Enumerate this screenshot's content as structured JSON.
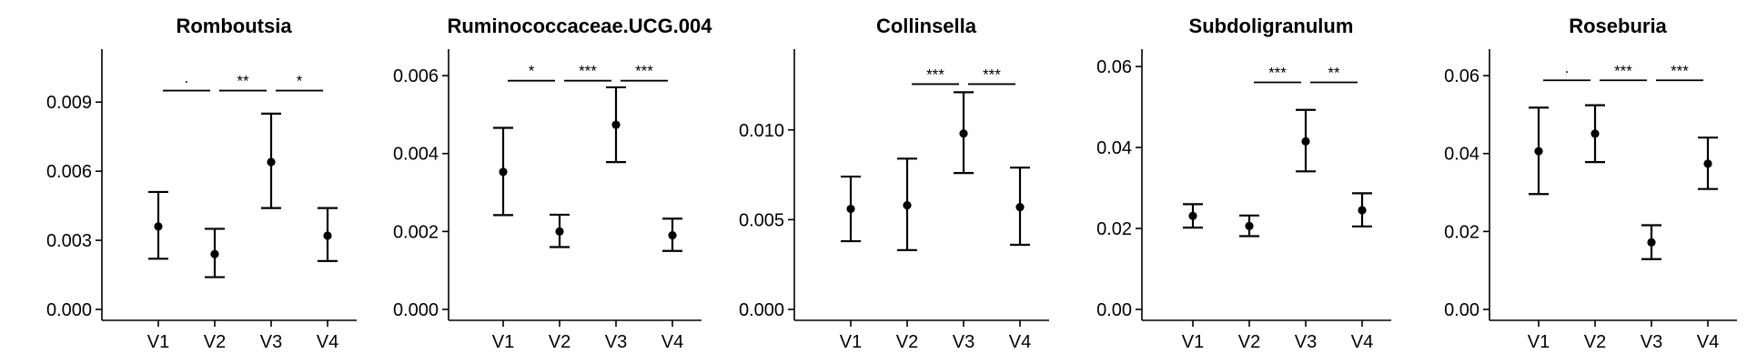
{
  "chart_data": [
    {
      "type": "scatter",
      "title": "Romboutsia",
      "categories": [
        "V1",
        "V2",
        "V3",
        "V4"
      ],
      "values": [
        0.0036,
        0.0024,
        0.0064,
        0.0032
      ],
      "error_low": [
        0.0022,
        0.0014,
        0.0044,
        0.0021
      ],
      "error_high": [
        0.0051,
        0.0035,
        0.0085,
        0.0044
      ],
      "ylim": [
        0,
        0.0113
      ],
      "yticks": [
        0,
        0.003,
        0.006,
        0.009
      ],
      "ytick_labels": [
        "0.000",
        "0.003",
        "0.006",
        "0.009"
      ],
      "significance": [
        {
          "from": "V1",
          "to": "V2",
          "label": "·",
          "y": 0.0095
        },
        {
          "from": "V2",
          "to": "V3",
          "label": "**",
          "y": 0.0095
        },
        {
          "from": "V3",
          "to": "V4",
          "label": "*",
          "y": 0.0095
        }
      ],
      "grid": false
    },
    {
      "type": "scatter",
      "title": "Ruminococcaceae.UCG.004",
      "categories": [
        "V1",
        "V2",
        "V3",
        "V4"
      ],
      "values": [
        0.00353,
        0.002,
        0.00474,
        0.0019
      ],
      "error_low": [
        0.00242,
        0.0016,
        0.00378,
        0.0015
      ],
      "error_high": [
        0.00466,
        0.00243,
        0.0057,
        0.00233
      ],
      "ylim": [
        0,
        0.00668
      ],
      "yticks": [
        0,
        0.002,
        0.004,
        0.006
      ],
      "ytick_labels": [
        "0.000",
        "0.002",
        "0.004",
        "0.006"
      ],
      "significance": [
        {
          "from": "V1",
          "to": "V2",
          "label": "*",
          "y": 0.00587
        },
        {
          "from": "V2",
          "to": "V3",
          "label": "***",
          "y": 0.00587
        },
        {
          "from": "V3",
          "to": "V4",
          "label": "***",
          "y": 0.00587
        }
      ],
      "grid": false
    },
    {
      "type": "scatter",
      "title": "Collinsella",
      "categories": [
        "V1",
        "V2",
        "V3",
        "V4"
      ],
      "values": [
        0.0056,
        0.0058,
        0.0098,
        0.0057
      ],
      "error_low": [
        0.0038,
        0.0033,
        0.0076,
        0.0036
      ],
      "error_high": [
        0.0074,
        0.0084,
        0.0121,
        0.0079
      ],
      "ylim": [
        0,
        0.0145
      ],
      "yticks": [
        0,
        0.005,
        0.01
      ],
      "ytick_labels": [
        "0.000",
        "0.005",
        "0.010"
      ],
      "significance": [
        {
          "from": "V2",
          "to": "V3",
          "label": "***",
          "y": 0.01255
        },
        {
          "from": "V3",
          "to": "V4",
          "label": "***",
          "y": 0.01255
        }
      ],
      "grid": false
    },
    {
      "type": "scatter",
      "title": "Subdoligranulum",
      "categories": [
        "V1",
        "V2",
        "V3",
        "V4"
      ],
      "values": [
        0.0231,
        0.0206,
        0.0415,
        0.0245
      ],
      "error_low": [
        0.0202,
        0.0181,
        0.0341,
        0.0205
      ],
      "error_high": [
        0.026,
        0.0232,
        0.0493,
        0.0287
      ],
      "ylim": [
        0,
        0.0643
      ],
      "yticks": [
        0,
        0.02,
        0.04,
        0.06
      ],
      "ytick_labels": [
        "0.00",
        "0.02",
        "0.04",
        "0.06"
      ],
      "significance": [
        {
          "from": "V2",
          "to": "V3",
          "label": "***",
          "y": 0.0561
        },
        {
          "from": "V3",
          "to": "V4",
          "label": "**",
          "y": 0.0561
        }
      ],
      "grid": false
    },
    {
      "type": "scatter",
      "title": "Roseburia",
      "categories": [
        "V1",
        "V2",
        "V3",
        "V4"
      ],
      "values": [
        0.0406,
        0.0451,
        0.0172,
        0.0374
      ],
      "error_low": [
        0.0296,
        0.0378,
        0.0129,
        0.0309
      ],
      "error_high": [
        0.0518,
        0.0524,
        0.0216,
        0.0441
      ],
      "ylim": [
        0,
        0.0668
      ],
      "yticks": [
        0,
        0.02,
        0.04,
        0.06
      ],
      "ytick_labels": [
        "0.00",
        "0.02",
        "0.04",
        "0.06"
      ],
      "significance": [
        {
          "from": "V1",
          "to": "V2",
          "label": "·",
          "y": 0.0588
        },
        {
          "from": "V2",
          "to": "V3",
          "label": "***",
          "y": 0.0588
        },
        {
          "from": "V3",
          "to": "V4",
          "label": "***",
          "y": 0.0588
        }
      ],
      "grid": false
    }
  ]
}
